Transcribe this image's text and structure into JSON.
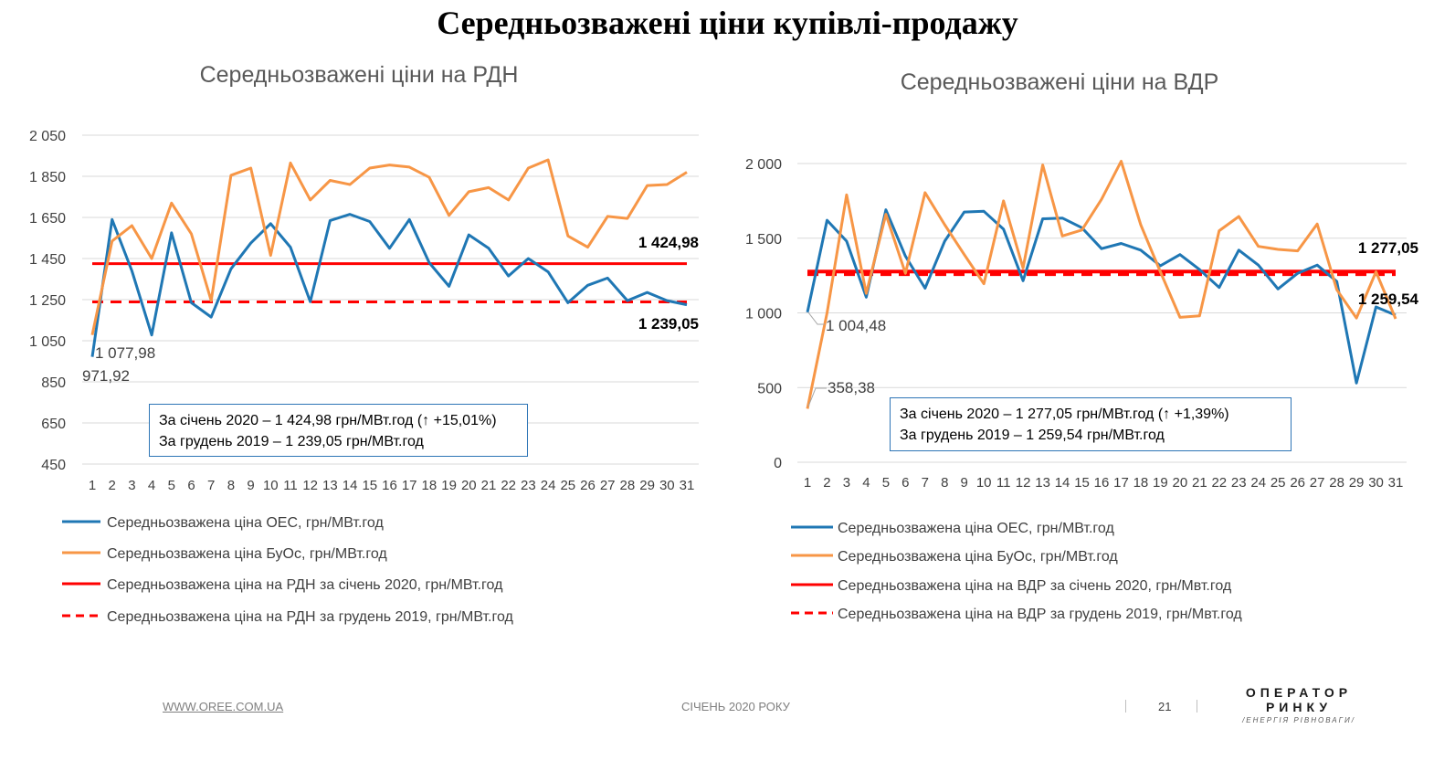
{
  "page": {
    "title": "Середньозважені ціни купівлі-продажу",
    "footer_link": "WWW.OREE.COM.UA",
    "footer_mid": "СІЧЕНЬ 2020 РОКУ",
    "page_number": "21",
    "logo": {
      "line1": "ОПЕРАТОР",
      "line2": "РИНКУ",
      "line3": "/ЕНЕРГІЯ РІВНОВАГИ/"
    }
  },
  "colors": {
    "oes": "#1f77b4",
    "buos": "#f79646",
    "avg": "#ff0000",
    "grid": "#d9d9d9",
    "box": "#2e75b6"
  },
  "chart_data": [
    {
      "type": "line",
      "title": "Середньозважені ціни на РДН",
      "x": [
        1,
        2,
        3,
        4,
        5,
        6,
        7,
        8,
        9,
        10,
        11,
        12,
        13,
        14,
        15,
        16,
        17,
        18,
        19,
        20,
        21,
        22,
        23,
        24,
        25,
        26,
        27,
        28,
        29,
        30,
        31
      ],
      "ylim": [
        450,
        2050
      ],
      "yticks": [
        450,
        650,
        850,
        1050,
        1250,
        1450,
        1650,
        1850,
        2050
      ],
      "ytick_labels": [
        "450",
        "650",
        "850",
        "1 050",
        "1 250",
        "1 450",
        "1 650",
        "1 850",
        "2 050"
      ],
      "grid": true,
      "legend_position": "bottom",
      "series": [
        {
          "name": "Середньозважена ціна ОЕС, грн/МВт.год",
          "color": "#1f77b4",
          "style": "solid",
          "values": [
            971.92,
            1640,
            1390,
            1077.98,
            1575,
            1235,
            1165,
            1400,
            1525,
            1620,
            1505,
            1240,
            1635,
            1665,
            1630,
            1500,
            1640,
            1430,
            1315,
            1565,
            1500,
            1365,
            1450,
            1385,
            1235,
            1320,
            1355,
            1245,
            1285,
            1245,
            1225
          ]
        },
        {
          "name": "Середньозважена ціна БуОс, грн/МВт.год",
          "color": "#f79646",
          "style": "solid",
          "values": [
            1077.98,
            1535,
            1610,
            1450,
            1720,
            1570,
            1245,
            1855,
            1890,
            1465,
            1915,
            1735,
            1830,
            1810,
            1890,
            1905,
            1895,
            1845,
            1660,
            1775,
            1795,
            1735,
            1890,
            1930,
            1560,
            1505,
            1655,
            1645,
            1805,
            1810,
            1870
          ]
        },
        {
          "name": "Середньозважена ціна на РДН за січень 2020, грн/МВт.год",
          "color": "#ff0000",
          "style": "solid",
          "constant": 1424.98
        },
        {
          "name": "Середньозважена ціна на РДН за грудень 2019, грн/МВт.год",
          "color": "#ff0000",
          "style": "dashed",
          "constant": 1239.05
        }
      ],
      "annotations": {
        "jan_label": "1 424,98",
        "dec_label": "1 239,05",
        "first_buos": "1 077,98",
        "first_oes": "971,92"
      },
      "info_box": [
        "За січень 2020 – 1 424,98 грн/МВт.год (↑ +15,01%)",
        "За грудень 2019 – 1 239,05 грн/МВт.год"
      ]
    },
    {
      "type": "line",
      "title": "Середньозважені ціни на ВДР",
      "x": [
        1,
        2,
        3,
        4,
        5,
        6,
        7,
        8,
        9,
        10,
        11,
        12,
        13,
        14,
        15,
        16,
        17,
        18,
        19,
        20,
        21,
        22,
        23,
        24,
        25,
        26,
        27,
        28,
        29,
        30,
        31
      ],
      "ylim": [
        0,
        2000
      ],
      "yticks": [
        0,
        500,
        1000,
        1500,
        2000
      ],
      "ytick_labels": [
        "0",
        "500",
        "1 000",
        "1 500",
        "2 000"
      ],
      "grid": true,
      "legend_position": "bottom",
      "series": [
        {
          "name": "Середньозважена ціна ОЕС, грн/МВт.год",
          "color": "#1f77b4",
          "style": "solid",
          "values": [
            1004.48,
            1620,
            1480,
            1105,
            1690,
            1380,
            1165,
            1480,
            1675,
            1680,
            1560,
            1215,
            1630,
            1635,
            1570,
            1430,
            1465,
            1420,
            1315,
            1390,
            1290,
            1170,
            1420,
            1320,
            1160,
            1265,
            1320,
            1210,
            530,
            1040,
            985
          ]
        },
        {
          "name": "Середньозважена ціна БуОс, грн/МВт.год",
          "color": "#f79646",
          "style": "solid",
          "values": [
            358.38,
            1000,
            1790,
            1130,
            1660,
            1265,
            1805,
            1590,
            1390,
            1195,
            1750,
            1300,
            1990,
            1515,
            1555,
            1760,
            2015,
            1590,
            1275,
            970,
            980,
            1550,
            1645,
            1445,
            1425,
            1415,
            1595,
            1155,
            965,
            1275,
            960
          ]
        },
        {
          "name": "Середньозважена ціна на ВДР за січень 2020, грн/Мвт.год",
          "color": "#ff0000",
          "style": "solid",
          "constant": 1277.05
        },
        {
          "name": "Середньозважена ціна на ВДР за грудень 2019, грн/Мвт.год",
          "color": "#ff0000",
          "style": "dashed",
          "constant": 1259.54
        }
      ],
      "annotations": {
        "jan_label": "1 277,05",
        "dec_label": "1 259,54",
        "first_oes": "1 004,48",
        "first_buos": "358,38"
      },
      "info_box": [
        "За січень 2020 – 1 277,05 грн/МВт.год (↑ +1,39%)",
        "За грудень 2019 – 1 259,54 грн/МВт.год"
      ]
    }
  ]
}
